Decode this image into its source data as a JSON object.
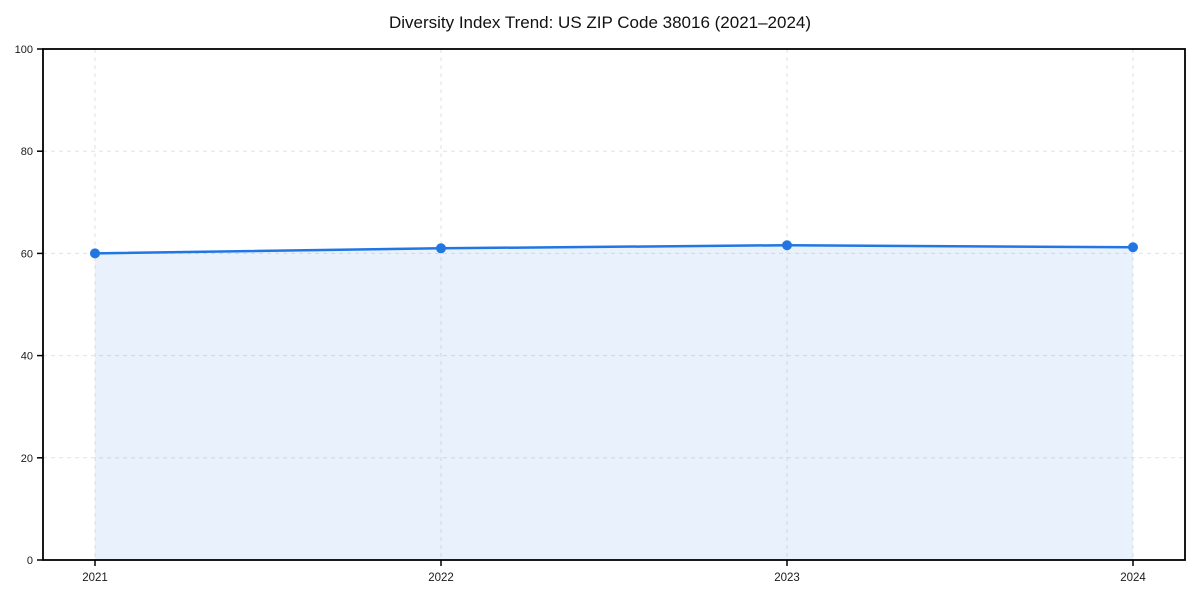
{
  "title": "Diversity Index Trend: US ZIP Code 38016 (2021–2024)",
  "colors": {
    "line": "#2276e3",
    "marker": "#2276e3",
    "fill": "rgba(34,118,227,0.10)",
    "grid": "#e2e2e2",
    "axis": "#000000",
    "tick_label": "#1a1a1a"
  },
  "chart_data": {
    "type": "area",
    "title": "Diversity Index Trend: US ZIP Code 38016 (2021–2024)",
    "x": [
      2021,
      2022,
      2023,
      2024
    ],
    "xtick_labels": [
      "2021",
      "2022",
      "2023",
      "2024"
    ],
    "series": [
      {
        "name": "Diversity Index",
        "values": [
          60.0,
          61.0,
          61.6,
          61.2
        ]
      }
    ],
    "xlabel": "",
    "ylabel": "",
    "ylim": [
      0,
      100
    ],
    "yticks": [
      0,
      20,
      40,
      60,
      80,
      100
    ],
    "grid": true,
    "grid_style": "dashed",
    "legend": "none",
    "marker": "circle"
  }
}
